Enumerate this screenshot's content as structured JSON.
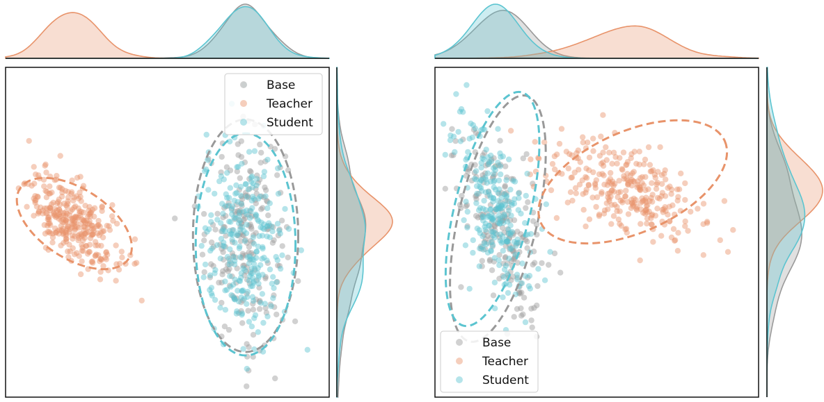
{
  "chart_data": [
    {
      "type": "scatter",
      "subtype": "joint scatter with marginal KDEs and confidence ellipses",
      "title": "",
      "xlabel": "",
      "ylabel": "",
      "axes_visible": false,
      "grid": false,
      "legend": {
        "placement": "top-right",
        "entries": [
          "Base",
          "Teacher",
          "Student"
        ]
      },
      "series": [
        {
          "name": "Base",
          "color": "#999999",
          "center": [
            3.4,
            0.1
          ],
          "std": [
            0.75,
            1.5
          ],
          "n": 220,
          "ellipse": {
            "center": [
              3.4,
              0.15
            ],
            "rx": 1.95,
            "ry": 3.35,
            "angle_deg": 0
          }
        },
        {
          "name": "Teacher",
          "color": "#E8936A",
          "center": [
            -3.0,
            0.55
          ],
          "std": [
            0.85,
            0.7
          ],
          "rho": -0.6,
          "n": 320,
          "ellipse": {
            "center": [
              -2.95,
              0.5
            ],
            "rx": 2.4,
            "ry": 1.0,
            "angle_deg": -33
          }
        },
        {
          "name": "Student",
          "color": "#5BC4D0",
          "center": [
            3.35,
            -0.1
          ],
          "std": [
            0.8,
            1.45
          ],
          "n": 260,
          "ellipse": {
            "center": [
              3.4,
              -0.1
            ],
            "rx": 1.85,
            "ry": 3.2,
            "angle_deg": 0
          }
        }
      ],
      "xlim": [
        -5.5,
        6.5
      ],
      "ylim": [
        -4.5,
        5.0
      ]
    },
    {
      "type": "scatter",
      "subtype": "joint scatter with marginal KDEs and confidence ellipses",
      "title": "",
      "xlabel": "",
      "ylabel": "",
      "axes_visible": false,
      "grid": false,
      "legend": {
        "placement": "bottom-left",
        "entries": [
          "Base",
          "Teacher",
          "Student"
        ]
      },
      "series": [
        {
          "name": "Base",
          "color": "#999999",
          "center": [
            -2.2,
            1.0
          ],
          "std": [
            0.6,
            1.25
          ],
          "rho": -0.6,
          "n": 200,
          "ellipse": {
            "center": [
              -2.25,
              1.1
            ],
            "rx": 1.1,
            "ry": 3.25,
            "angle_deg": -13
          }
        },
        {
          "name": "Teacher",
          "color": "#E8936A",
          "center": [
            1.2,
            1.9
          ],
          "std": [
            1.15,
            0.65
          ],
          "rho": -0.55,
          "n": 300,
          "ellipse": {
            "center": [
              1.5,
              2.05
            ],
            "rx": 2.8,
            "ry": 1.3,
            "angle_deg": 24
          }
        },
        {
          "name": "Student",
          "color": "#5BC4D0",
          "center": [
            -2.4,
            1.4
          ],
          "std": [
            0.55,
            1.15
          ],
          "rho": -0.6,
          "n": 240,
          "ellipse": {
            "center": [
              -2.4,
              1.35
            ],
            "rx": 1.05,
            "ry": 3.1,
            "angle_deg": -14
          }
        }
      ],
      "xlim": [
        -4.0,
        5.0
      ],
      "ylim": [
        -3.5,
        5.0
      ]
    }
  ]
}
